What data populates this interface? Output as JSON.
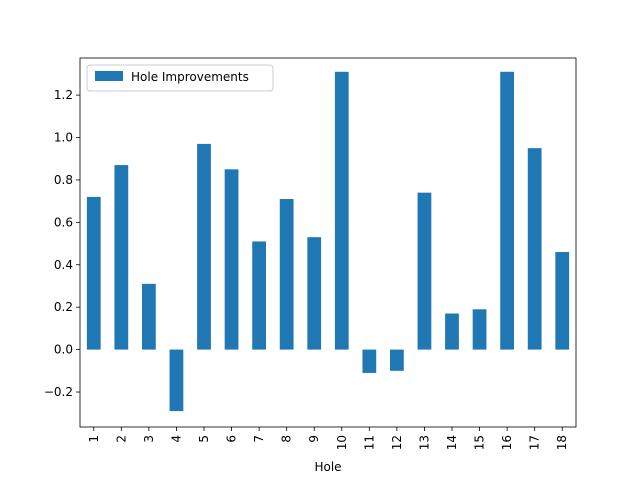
{
  "chart_data": {
    "type": "bar",
    "title": "",
    "xlabel": "Hole",
    "ylabel": "",
    "categories": [
      "1",
      "2",
      "3",
      "4",
      "5",
      "6",
      "7",
      "8",
      "9",
      "10",
      "11",
      "12",
      "13",
      "14",
      "15",
      "16",
      "17",
      "18"
    ],
    "series": [
      {
        "name": "Hole Improvements",
        "color": "#1f77b4",
        "values": [
          0.72,
          0.87,
          0.31,
          -0.29,
          0.97,
          0.85,
          0.51,
          0.71,
          0.53,
          1.31,
          -0.11,
          -0.1,
          0.74,
          0.17,
          0.19,
          1.31,
          0.95,
          0.46
        ]
      }
    ],
    "ylim": [
      -0.365,
      1.375
    ],
    "yticks": [
      -0.2,
      0.0,
      0.2,
      0.4,
      0.6,
      0.8,
      1.0,
      1.2
    ],
    "ytick_labels": [
      "−0.2",
      "0.0",
      "0.2",
      "0.4",
      "0.6",
      "0.8",
      "1.0",
      "1.2"
    ],
    "grid": false,
    "legend_position": "upper-left"
  }
}
